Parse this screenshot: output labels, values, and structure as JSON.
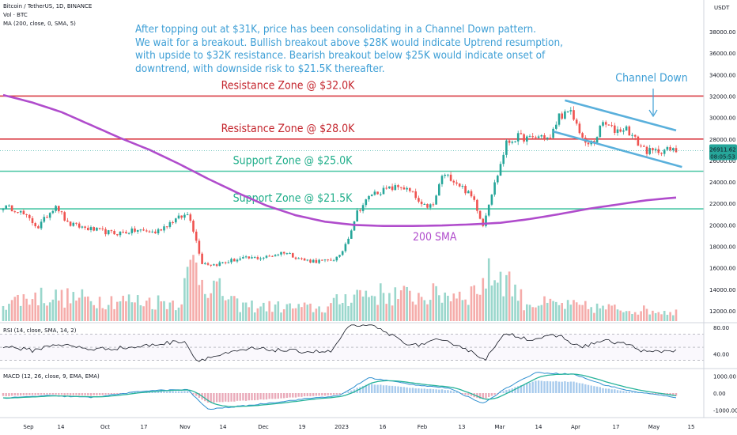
{
  "header": {
    "symbol": "Bitcoin / TetherUS, 1D, BINANCE",
    "volume": "Vol · BTC",
    "ma": "MA (200, close, 0, SMA, 5)",
    "currency": "USDT"
  },
  "annotation": "After topping out at $31K, price has been consolidating in a Channel Down pattern.\nWe wait for a breakout. Bullish breakout above $28K would indicate Uptrend resumption,\nwith upside to $32K resistance. Bearish breakout below $25K would indicate onset of\ndowntrend, with downside risk to $21.5K thereafter.",
  "colors": {
    "resistance": "#d93b42",
    "support": "#4cc7a6",
    "sma": "#b04ccc",
    "channel": "#5ab0dc",
    "candle_up": "#26a69a",
    "candle_down": "#ef5350",
    "price_badge": "#26a69a"
  },
  "chart_data": [
    {
      "type": "candlestick",
      "title": "Bitcoin / TetherUS, 1D, BINANCE",
      "y_axis": {
        "min": 11000,
        "max": 40000,
        "ticks": [
          12000,
          14000,
          16000,
          18000,
          20000,
          22000,
          24000,
          26000,
          28000,
          30000,
          32000,
          34000,
          36000,
          38000
        ],
        "tick_labels": [
          "12000.00",
          "14000.00",
          "16000.00",
          "18000.00",
          "20000.00",
          "22000.00",
          "24000.00",
          "26000.00",
          "28000.00",
          "30000.00",
          "32000.00",
          "34000.00",
          "36000.00",
          "38000.00"
        ]
      },
      "x_axis": {
        "tick_labels": [
          "Sep",
          "14",
          "Oct",
          "17",
          "Nov",
          "14",
          "Dec",
          "19",
          "2023",
          "16",
          "Feb",
          "13",
          "Mar",
          "14",
          "Apr",
          "17",
          "May",
          "15"
        ]
      },
      "price_anchors": [
        {
          "day": 0,
          "price": 21700
        },
        {
          "day": 5,
          "price": 21400
        },
        {
          "day": 12,
          "price": 19800
        },
        {
          "day": 18,
          "price": 21900
        },
        {
          "day": 22,
          "price": 20100
        },
        {
          "day": 30,
          "price": 19600
        },
        {
          "day": 38,
          "price": 19200
        },
        {
          "day": 46,
          "price": 19500
        },
        {
          "day": 52,
          "price": 19300
        },
        {
          "day": 58,
          "price": 20400
        },
        {
          "day": 63,
          "price": 21000
        },
        {
          "day": 64,
          "price": 20600
        },
        {
          "day": 66,
          "price": 18500
        },
        {
          "day": 68,
          "price": 16500
        },
        {
          "day": 72,
          "price": 16300
        },
        {
          "day": 80,
          "price": 16800
        },
        {
          "day": 90,
          "price": 17000
        },
        {
          "day": 96,
          "price": 17500
        },
        {
          "day": 103,
          "price": 16700
        },
        {
          "day": 110,
          "price": 16600
        },
        {
          "day": 115,
          "price": 17000
        },
        {
          "day": 118,
          "price": 18900
        },
        {
          "day": 121,
          "price": 21200
        },
        {
          "day": 126,
          "price": 22900
        },
        {
          "day": 131,
          "price": 23300
        },
        {
          "day": 136,
          "price": 23600
        },
        {
          "day": 140,
          "price": 22900
        },
        {
          "day": 143,
          "price": 21700
        },
        {
          "day": 147,
          "price": 21800
        },
        {
          "day": 150,
          "price": 24600
        },
        {
          "day": 153,
          "price": 24400
        },
        {
          "day": 157,
          "price": 23500
        },
        {
          "day": 161,
          "price": 22300
        },
        {
          "day": 164,
          "price": 20000
        },
        {
          "day": 166,
          "price": 22100
        },
        {
          "day": 169,
          "price": 24700
        },
        {
          "day": 172,
          "price": 27600
        },
        {
          "day": 176,
          "price": 28200
        },
        {
          "day": 180,
          "price": 28000
        },
        {
          "day": 184,
          "price": 28300
        },
        {
          "day": 187,
          "price": 28000
        },
        {
          "day": 190,
          "price": 30200
        },
        {
          "day": 194,
          "price": 30400
        },
        {
          "day": 197,
          "price": 28800
        },
        {
          "day": 199,
          "price": 27400
        },
        {
          "day": 202,
          "price": 27800
        },
        {
          "day": 205,
          "price": 29500
        },
        {
          "day": 209,
          "price": 28800
        },
        {
          "day": 213,
          "price": 29000
        },
        {
          "day": 217,
          "price": 27600
        },
        {
          "day": 220,
          "price": 26900
        },
        {
          "day": 222,
          "price": 26800
        },
        {
          "day": 226,
          "price": 27000
        },
        {
          "day": 230,
          "price": 26900
        }
      ],
      "last_price": "26911.62",
      "countdown": "08:05:53",
      "horizontal_levels": [
        {
          "name": "Resistance Zone @ $32.0K",
          "price": 32000,
          "kind": "resistance"
        },
        {
          "name": "Resistance Zone @ $28.0K",
          "price": 28000,
          "kind": "resistance"
        },
        {
          "name": "Support Zone @ $25.0K",
          "price": 25000,
          "kind": "support"
        },
        {
          "name": "Support Zone @ $21.5K",
          "price": 21500,
          "kind": "support"
        }
      ],
      "sma_label": "200 SMA",
      "channel_label": "Channel Down",
      "sma_anchors": [
        {
          "day": 0,
          "price": 32100
        },
        {
          "day": 10,
          "price": 31400
        },
        {
          "day": 20,
          "price": 30500
        },
        {
          "day": 30,
          "price": 29300
        },
        {
          "day": 40,
          "price": 28100
        },
        {
          "day": 50,
          "price": 27000
        },
        {
          "day": 60,
          "price": 25700
        },
        {
          "day": 70,
          "price": 24300
        },
        {
          "day": 80,
          "price": 23000
        },
        {
          "day": 90,
          "price": 21800
        },
        {
          "day": 100,
          "price": 20900
        },
        {
          "day": 110,
          "price": 20300
        },
        {
          "day": 120,
          "price": 20000
        },
        {
          "day": 130,
          "price": 19900
        },
        {
          "day": 140,
          "price": 19900
        },
        {
          "day": 150,
          "price": 19950
        },
        {
          "day": 160,
          "price": 20050
        },
        {
          "day": 170,
          "price": 20200
        },
        {
          "day": 180,
          "price": 20550
        },
        {
          "day": 190,
          "price": 21000
        },
        {
          "day": 200,
          "price": 21500
        },
        {
          "day": 210,
          "price": 21900
        },
        {
          "day": 220,
          "price": 22300
        },
        {
          "day": 230,
          "price": 22550
        }
      ],
      "channel": {
        "upper": [
          {
            "day": 192,
            "price": 31600
          },
          {
            "day": 230,
            "price": 28800
          }
        ],
        "lower": [
          {
            "day": 188,
            "price": 28700
          },
          {
            "day": 232,
            "price": 25400
          }
        ]
      },
      "volume_anchors": [
        {
          "day": 0,
          "value": 0.3
        },
        {
          "day": 12,
          "value": 0.4
        },
        {
          "day": 30,
          "value": 0.35
        },
        {
          "day": 60,
          "value": 0.3
        },
        {
          "day": 65,
          "value": 0.95
        },
        {
          "day": 68,
          "value": 0.7
        },
        {
          "day": 80,
          "value": 0.25
        },
        {
          "day": 110,
          "value": 0.2
        },
        {
          "day": 120,
          "value": 0.45
        },
        {
          "day": 140,
          "value": 0.4
        },
        {
          "day": 160,
          "value": 0.45
        },
        {
          "day": 167,
          "value": 0.75
        },
        {
          "day": 172,
          "value": 0.7
        },
        {
          "day": 178,
          "value": 0.3
        },
        {
          "day": 200,
          "value": 0.22
        },
        {
          "day": 230,
          "value": 0.15
        }
      ]
    },
    {
      "type": "line",
      "title": "RSI (14, close, SMA, 14, 2)",
      "y_axis": {
        "min": 20,
        "max": 85,
        "tick_labels": [
          "80.00",
          "40.00"
        ],
        "ticks": [
          80,
          40
        ]
      },
      "anchors": [
        {
          "day": 0,
          "value": 52
        },
        {
          "day": 10,
          "value": 45
        },
        {
          "day": 18,
          "value": 55
        },
        {
          "day": 30,
          "value": 47
        },
        {
          "day": 45,
          "value": 50
        },
        {
          "day": 62,
          "value": 60
        },
        {
          "day": 66,
          "value": 30
        },
        {
          "day": 70,
          "value": 34
        },
        {
          "day": 85,
          "value": 48
        },
        {
          "day": 100,
          "value": 44
        },
        {
          "day": 112,
          "value": 43
        },
        {
          "day": 118,
          "value": 80
        },
        {
          "day": 124,
          "value": 86
        },
        {
          "day": 132,
          "value": 70
        },
        {
          "day": 140,
          "value": 52
        },
        {
          "day": 148,
          "value": 60
        },
        {
          "day": 155,
          "value": 55
        },
        {
          "day": 162,
          "value": 38
        },
        {
          "day": 165,
          "value": 33
        },
        {
          "day": 172,
          "value": 72
        },
        {
          "day": 180,
          "value": 62
        },
        {
          "day": 190,
          "value": 68
        },
        {
          "day": 197,
          "value": 50
        },
        {
          "day": 205,
          "value": 60
        },
        {
          "day": 213,
          "value": 55
        },
        {
          "day": 220,
          "value": 42
        },
        {
          "day": 230,
          "value": 46
        }
      ]
    },
    {
      "type": "line",
      "title": "MACD (12, 26, close, 9, EMA, EMA)",
      "y_axis": {
        "min": -1300,
        "max": 1300,
        "tick_labels": [
          "1000.00",
          "0.00",
          "-1000.00"
        ],
        "ticks": [
          1000,
          0,
          -1000
        ]
      },
      "macd_anchors": [
        {
          "day": 0,
          "value": -300
        },
        {
          "day": 15,
          "value": -150
        },
        {
          "day": 30,
          "value": -250
        },
        {
          "day": 50,
          "value": 150
        },
        {
          "day": 63,
          "value": 200
        },
        {
          "day": 70,
          "value": -950
        },
        {
          "day": 85,
          "value": -700
        },
        {
          "day": 105,
          "value": -300
        },
        {
          "day": 115,
          "value": -150
        },
        {
          "day": 125,
          "value": 900
        },
        {
          "day": 140,
          "value": 500
        },
        {
          "day": 152,
          "value": 300
        },
        {
          "day": 164,
          "value": -600
        },
        {
          "day": 172,
          "value": 300
        },
        {
          "day": 182,
          "value": 1200
        },
        {
          "day": 195,
          "value": 1100
        },
        {
          "day": 205,
          "value": 500
        },
        {
          "day": 215,
          "value": 100
        },
        {
          "day": 230,
          "value": -250
        }
      ]
    }
  ]
}
